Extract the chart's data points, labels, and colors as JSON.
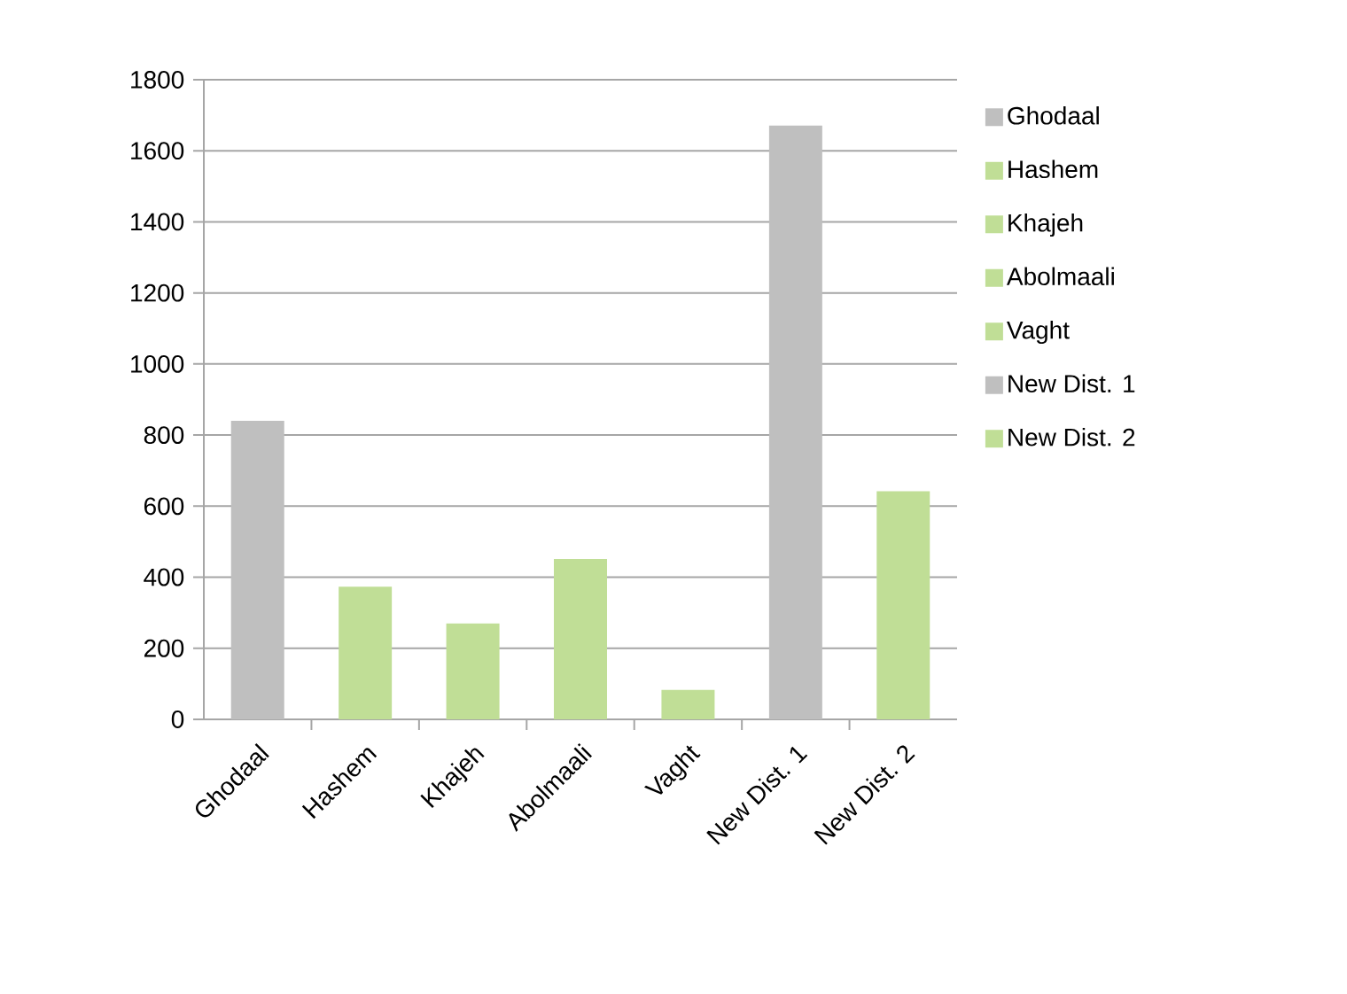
{
  "chart_data": {
    "type": "bar",
    "categories": [
      "Ghodaal",
      "Hashem",
      "Khajeh",
      "Abolmaali",
      "Vaght",
      "New Dist. 1",
      "New Dist. 2"
    ],
    "series": [
      {
        "name": "Ghodaal",
        "color": "#bfbfbf",
        "values": [
          840,
          null,
          null,
          null,
          null,
          null,
          null
        ]
      },
      {
        "name": "Hashem",
        "color": "#c0de96",
        "values": [
          null,
          373,
          null,
          null,
          null,
          null,
          null
        ]
      },
      {
        "name": "Khajeh",
        "color": "#c0de96",
        "values": [
          null,
          null,
          270,
          null,
          null,
          null,
          null
        ]
      },
      {
        "name": "Abolmaali",
        "color": "#c0de96",
        "values": [
          null,
          null,
          null,
          451,
          null,
          null,
          null
        ]
      },
      {
        "name": "Vaght",
        "color": "#c0de96",
        "values": [
          null,
          null,
          null,
          null,
          83,
          null,
          null
        ]
      },
      {
        "name": "New Dist. 1",
        "color": "#bfbfbf",
        "values": [
          null,
          null,
          null,
          null,
          null,
          1671,
          null
        ]
      },
      {
        "name": "New Dist. 2",
        "color": "#c0de96",
        "values": [
          null,
          null,
          null,
          null,
          null,
          null,
          642
        ]
      }
    ],
    "ylim": [
      0,
      1800
    ],
    "yticks": [
      0,
      200,
      400,
      600,
      800,
      1000,
      1200,
      1400,
      1600,
      1800
    ],
    "grid": "y",
    "legend": "right"
  }
}
